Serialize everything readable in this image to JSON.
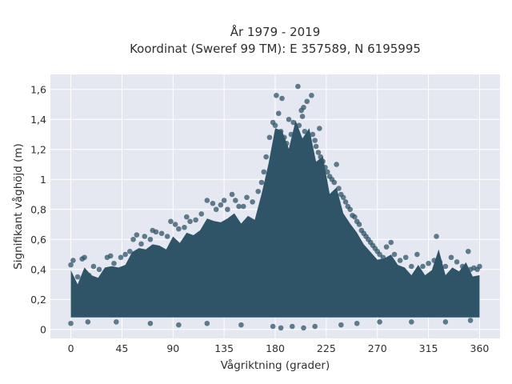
{
  "chart_data": {
    "type": "scatter",
    "title": [
      "År 1979 - 2019",
      "Koordinat (Sweref 99 TM): E 357589, N 6195995"
    ],
    "xlabel": "Vågriktning (grader)",
    "ylabel": "Signifikant våghöjd (m)",
    "xlim": [
      -18,
      378
    ],
    "ylim": [
      -0.06,
      1.7
    ],
    "xticks": [
      0,
      45,
      90,
      135,
      180,
      225,
      270,
      315,
      360
    ],
    "xtick_labels": [
      "0",
      "45",
      "90",
      "135",
      "180",
      "225",
      "270",
      "315",
      "360"
    ],
    "yticks": [
      0,
      0.2,
      0.4,
      0.6,
      0.8,
      1.0,
      1.2,
      1.4,
      1.6
    ],
    "ytick_labels": [
      "0",
      "0,2",
      "0,4",
      "0,6",
      "0,8",
      "1",
      "1,2",
      "1,4",
      "1,6"
    ],
    "grid": true,
    "legend": "none",
    "marker_color": "#2f5468",
    "background_color": "#e5e8f0",
    "series": [
      {
        "points": [
          [
            0,
            0.43
          ],
          [
            2,
            0.46
          ],
          [
            6,
            0.35
          ],
          [
            10,
            0.47
          ],
          [
            12,
            0.48
          ],
          [
            16,
            0.36
          ],
          [
            20,
            0.42
          ],
          [
            25,
            0.4
          ],
          [
            32,
            0.48
          ],
          [
            35,
            0.49
          ],
          [
            38,
            0.44
          ],
          [
            44,
            0.48
          ],
          [
            48,
            0.5
          ],
          [
            52,
            0.52
          ],
          [
            55,
            0.6
          ],
          [
            58,
            0.63
          ],
          [
            62,
            0.57
          ],
          [
            65,
            0.62
          ],
          [
            70,
            0.6
          ],
          [
            72,
            0.66
          ],
          [
            75,
            0.65
          ],
          [
            80,
            0.64
          ],
          [
            85,
            0.62
          ],
          [
            88,
            0.72
          ],
          [
            92,
            0.7
          ],
          [
            95,
            0.67
          ],
          [
            100,
            0.68
          ],
          [
            102,
            0.75
          ],
          [
            105,
            0.72
          ],
          [
            110,
            0.73
          ],
          [
            115,
            0.77
          ],
          [
            120,
            0.86
          ],
          [
            125,
            0.84
          ],
          [
            128,
            0.8
          ],
          [
            132,
            0.83
          ],
          [
            135,
            0.86
          ],
          [
            138,
            0.8
          ],
          [
            142,
            0.9
          ],
          [
            145,
            0.86
          ],
          [
            148,
            0.82
          ],
          [
            152,
            0.82
          ],
          [
            155,
            0.88
          ],
          [
            160,
            0.85
          ],
          [
            165,
            0.92
          ],
          [
            168,
            0.98
          ],
          [
            170,
            1.05
          ],
          [
            172,
            1.15
          ],
          [
            175,
            1.28
          ],
          [
            176,
            1.04
          ],
          [
            178,
            1.38
          ],
          [
            180,
            1.36
          ],
          [
            181,
            1.56
          ],
          [
            183,
            1.44
          ],
          [
            185,
            1.32
          ],
          [
            186,
            1.54
          ],
          [
            188,
            1.28
          ],
          [
            189,
            1.22
          ],
          [
            190,
            1.24
          ],
          [
            192,
            1.4
          ],
          [
            194,
            1.3
          ],
          [
            196,
            1.38
          ],
          [
            198,
            1.25
          ],
          [
            200,
            1.62
          ],
          [
            201,
            1.36
          ],
          [
            203,
            1.46
          ],
          [
            204,
            1.42
          ],
          [
            205,
            1.48
          ],
          [
            206,
            1.32
          ],
          [
            208,
            1.52
          ],
          [
            209,
            1.24
          ],
          [
            210,
            1.2
          ],
          [
            212,
            1.56
          ],
          [
            213,
            1.3
          ],
          [
            215,
            1.26
          ],
          [
            216,
            1.22
          ],
          [
            218,
            1.18
          ],
          [
            219,
            1.34
          ],
          [
            220,
            1.15
          ],
          [
            222,
            1.12
          ],
          [
            224,
            1.08
          ],
          [
            226,
            1.05
          ],
          [
            228,
            1.02
          ],
          [
            230,
            1.0
          ],
          [
            232,
            0.98
          ],
          [
            234,
            1.1
          ],
          [
            236,
            0.94
          ],
          [
            238,
            0.9
          ],
          [
            240,
            0.88
          ],
          [
            242,
            0.85
          ],
          [
            244,
            0.82
          ],
          [
            246,
            0.8
          ],
          [
            248,
            0.76
          ],
          [
            250,
            0.75
          ],
          [
            252,
            0.72
          ],
          [
            254,
            0.7
          ],
          [
            256,
            0.66
          ],
          [
            258,
            0.64
          ],
          [
            260,
            0.62
          ],
          [
            262,
            0.6
          ],
          [
            264,
            0.58
          ],
          [
            266,
            0.56
          ],
          [
            268,
            0.54
          ],
          [
            270,
            0.52
          ],
          [
            272,
            0.5
          ],
          [
            275,
            0.48
          ],
          [
            278,
            0.55
          ],
          [
            282,
            0.58
          ],
          [
            285,
            0.5
          ],
          [
            290,
            0.46
          ],
          [
            295,
            0.48
          ],
          [
            300,
            0.42
          ],
          [
            305,
            0.5
          ],
          [
            310,
            0.42
          ],
          [
            315,
            0.44
          ],
          [
            320,
            0.46
          ],
          [
            322,
            0.62
          ],
          [
            325,
            0.45
          ],
          [
            330,
            0.42
          ],
          [
            335,
            0.48
          ],
          [
            340,
            0.45
          ],
          [
            345,
            0.42
          ],
          [
            350,
            0.52
          ],
          [
            352,
            0.4
          ],
          [
            355,
            0.41
          ],
          [
            358,
            0.4
          ],
          [
            360,
            0.42
          ],
          [
            0,
            0.04
          ],
          [
            15,
            0.05
          ],
          [
            40,
            0.05
          ],
          [
            70,
            0.04
          ],
          [
            95,
            0.03
          ],
          [
            120,
            0.04
          ],
          [
            150,
            0.03
          ],
          [
            178,
            0.02
          ],
          [
            185,
            0.01
          ],
          [
            195,
            0.02
          ],
          [
            205,
            0.01
          ],
          [
            215,
            0.02
          ],
          [
            238,
            0.03
          ],
          [
            252,
            0.04
          ],
          [
            272,
            0.05
          ],
          [
            300,
            0.05
          ],
          [
            330,
            0.05
          ],
          [
            352,
            0.06
          ]
        ]
      }
    ]
  }
}
